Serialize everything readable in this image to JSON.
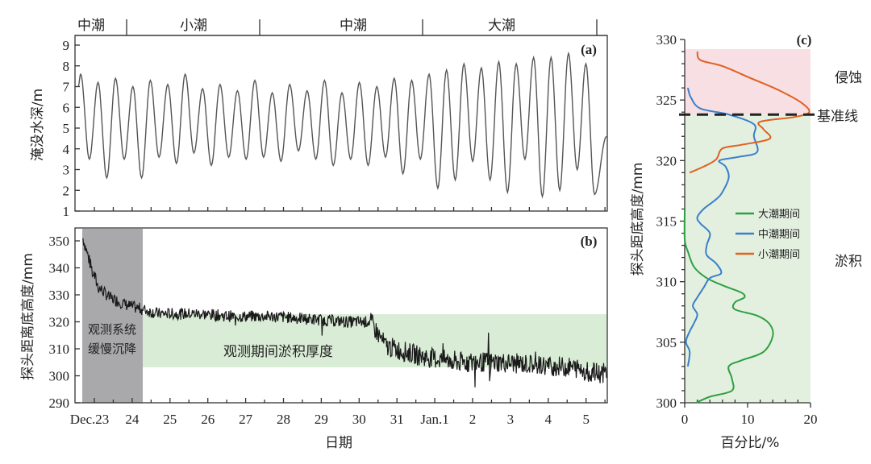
{
  "chart_data": [
    {
      "panel": "a",
      "type": "line",
      "panel_label": "(a)",
      "title": "",
      "xlabel": "",
      "ylabel": "淹没水深/m",
      "ylim": [
        1,
        9
      ],
      "yticks": [
        1,
        2,
        3,
        4,
        5,
        6,
        7,
        8,
        9
      ],
      "tide_phases": [
        {
          "label": "中潮",
          "x_start": "Dec.23",
          "x_end": "Dec.24"
        },
        {
          "label": "小潮",
          "x_start": "Dec.24",
          "x_end": "Dec.27"
        },
        {
          "label": "中潮",
          "x_start": "Dec.27",
          "x_end": "Dec.31"
        },
        {
          "label": "大潮",
          "x_start": "Dec.31",
          "x_end": "Jan.5"
        }
      ],
      "series": [
        {
          "name": "淹没水深",
          "color": "#444444",
          "peaks": [
            7.6,
            7.2,
            7.4,
            7.0,
            7.3,
            7.1,
            7.6,
            6.9,
            7.1,
            6.8,
            7.3,
            6.7,
            7.1,
            6.8,
            7.3,
            6.7,
            7.2,
            7.0,
            7.4,
            7.3,
            7.6,
            7.8,
            8.1,
            7.9,
            8.2,
            8.1,
            8.4,
            8.4,
            8.6,
            8.1
          ],
          "troughs": [
            3.5,
            2.6,
            3.5,
            2.6,
            3.6,
            3.3,
            3.8,
            3.2,
            3.6,
            3.5,
            3.6,
            3.4,
            3.9,
            3.5,
            3.2,
            3.5,
            3.2,
            3.6,
            2.8,
            3.5,
            2.1,
            2.5,
            3.4,
            2.5,
            1.9,
            3.5,
            1.7,
            2.0,
            3.0,
            1.8
          ],
          "end_value": 4.6
        }
      ]
    },
    {
      "panel": "b",
      "type": "line",
      "panel_label": "(b)",
      "xlabel": "日期",
      "ylabel": "探头距离底高度/mm",
      "ylim": [
        290,
        352
      ],
      "yticks": [
        290,
        300,
        310,
        320,
        330,
        340,
        350
      ],
      "categories": [
        "Dec.23",
        "24",
        "25",
        "26",
        "27",
        "28",
        "29",
        "30",
        "31",
        "Jan.1",
        "2",
        "3",
        "4",
        "5"
      ],
      "annotations": [
        {
          "text": "观测系统缓慢沉降",
          "lines": [
            "观测系统",
            "缓慢沉降"
          ],
          "region": "gray",
          "x_range": [
            "Dec.22.8",
            "Dec.24.2"
          ],
          "color": "#a9a8ab"
        },
        {
          "text": "观测期间淤积厚度",
          "region": "green",
          "y_range": [
            303,
            323
          ],
          "color": "#d9ecd6"
        }
      ],
      "series": [
        {
          "name": "探头距离底高度",
          "color": "#1a1a1a",
          "key_points": [
            {
              "day": 0.0,
              "value": 351
            },
            {
              "day": 0.2,
              "value": 341
            },
            {
              "day": 0.4,
              "value": 333
            },
            {
              "day": 0.7,
              "value": 329
            },
            {
              "day": 1.2,
              "value": 326
            },
            {
              "day": 2.0,
              "value": 323
            },
            {
              "day": 3.0,
              "value": 323
            },
            {
              "day": 4.0,
              "value": 322
            },
            {
              "day": 5.0,
              "value": 322
            },
            {
              "day": 6.0,
              "value": 321
            },
            {
              "day": 7.0,
              "value": 320
            },
            {
              "day": 7.6,
              "value": 320
            },
            {
              "day": 8.0,
              "value": 311
            },
            {
              "day": 9.0,
              "value": 307
            },
            {
              "day": 10.0,
              "value": 305
            },
            {
              "day": 11.0,
              "value": 305
            },
            {
              "day": 12.0,
              "value": 304
            },
            {
              "day": 13.0,
              "value": 303
            },
            {
              "day": 13.5,
              "value": 301
            }
          ]
        }
      ]
    },
    {
      "panel": "c",
      "type": "line",
      "panel_label": "(c)",
      "xlabel": "百分比/%",
      "ylabel": "探头距底高度/mm",
      "xlim": [
        0,
        20
      ],
      "ylim": [
        300,
        330
      ],
      "xticks": [
        0,
        10,
        20
      ],
      "yticks": [
        300,
        305,
        310,
        315,
        320,
        325,
        330
      ],
      "baseline": {
        "label": "基准线",
        "value": 323.8
      },
      "regions": [
        {
          "label": "侵蚀",
          "y_range": [
            323.8,
            329.2
          ],
          "color": "#f7dfe3"
        },
        {
          "label": "淤积",
          "y_range": [
            300,
            323.8
          ],
          "color": "#e3f0df"
        }
      ],
      "legend": [
        "大潮期间",
        "中潮期间",
        "小潮期间"
      ],
      "series": [
        {
          "name": "大潮期间",
          "color": "#2ea043",
          "points": [
            [
              1.8,
              300.0
            ],
            [
              4.0,
              300.5
            ],
            [
              7.5,
              301.0
            ],
            [
              7.5,
              302.0
            ],
            [
              7.0,
              303.0
            ],
            [
              9.0,
              303.5
            ],
            [
              12.5,
              304.2
            ],
            [
              14.0,
              305.5
            ],
            [
              13.5,
              306.5
            ],
            [
              11.5,
              307.2
            ],
            [
              8.0,
              307.7
            ],
            [
              8.0,
              308.3
            ],
            [
              9.5,
              308.7
            ],
            [
              9.0,
              309.1
            ],
            [
              6.5,
              309.6
            ],
            [
              3.5,
              310.3
            ],
            [
              1.5,
              311.2
            ],
            [
              0.5,
              312.5
            ],
            [
              0.0,
              313.5
            ],
            [
              0.0,
              316.0
            ]
          ]
        },
        {
          "name": "中潮期间",
          "color": "#3a7fc9",
          "points": [
            [
              0.5,
              303.0
            ],
            [
              0.8,
              304.2
            ],
            [
              0.2,
              305.0
            ],
            [
              0.7,
              305.8
            ],
            [
              1.5,
              306.6
            ],
            [
              2.0,
              307.3
            ],
            [
              1.3,
              308.0
            ],
            [
              2.0,
              308.7
            ],
            [
              3.0,
              309.5
            ],
            [
              4.0,
              310.3
            ],
            [
              5.8,
              310.7
            ],
            [
              5.0,
              311.5
            ],
            [
              3.5,
              312.2
            ],
            [
              3.5,
              313.0
            ],
            [
              4.0,
              314.0
            ],
            [
              2.5,
              314.8
            ],
            [
              2.0,
              315.3
            ],
            [
              3.0,
              316.0
            ],
            [
              5.0,
              316.8
            ],
            [
              6.0,
              317.4
            ],
            [
              7.0,
              318.6
            ],
            [
              6.5,
              319.5
            ],
            [
              5.5,
              320.0
            ],
            [
              8.5,
              320.3
            ],
            [
              11.5,
              320.7
            ],
            [
              11.0,
              322.0
            ],
            [
              11.0,
              323.0
            ],
            [
              7.0,
              323.8
            ],
            [
              2.5,
              324.3
            ],
            [
              1.0,
              325.2
            ],
            [
              0.5,
              326.0
            ]
          ]
        },
        {
          "name": "小潮期间",
          "color": "#e0601f",
          "points": [
            [
              0.8,
              319.0
            ],
            [
              3.0,
              319.5
            ],
            [
              5.0,
              320.1
            ],
            [
              6.0,
              321.0
            ],
            [
              9.0,
              321.3
            ],
            [
              13.5,
              321.8
            ],
            [
              12.5,
              322.6
            ],
            [
              12.0,
              323.2
            ],
            [
              17.5,
              323.6
            ],
            [
              19.8,
              324.0
            ],
            [
              18.5,
              324.8
            ],
            [
              15.0,
              325.8
            ],
            [
              10.5,
              326.8
            ],
            [
              6.0,
              327.8
            ],
            [
              2.5,
              328.3
            ],
            [
              2.0,
              329.0
            ]
          ]
        }
      ]
    }
  ],
  "labels": {
    "phase_1": "中潮",
    "phase_2": "小潮",
    "phase_3": "中潮",
    "phase_4": "大潮",
    "panel_a": "(a)",
    "panel_b": "(b)",
    "panel_c": "(c)",
    "ylabel_a": "淹没水深/m",
    "ylabel_b": "探头距离底高度/mm",
    "ylabel_c": "探头距底高度/mm",
    "xlabel_b": "日期",
    "xlabel_c": "百分比/%",
    "gray_note_1": "观测系统",
    "gray_note_2": "缓慢沉降",
    "green_note": "观测期间淤积厚度",
    "erosion": "侵蚀",
    "baseline": "基准线",
    "deposition": "淤积",
    "legend_1": "大潮期间",
    "legend_2": "中潮期间",
    "legend_3": "小潮期间"
  }
}
